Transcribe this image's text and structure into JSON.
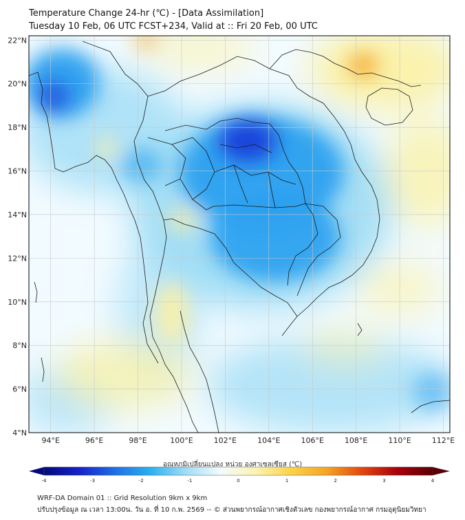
{
  "title": {
    "line1": "Temperature Change 24-hr (℃) - [Data Assimilation]",
    "line2": "Tuesday 10 Feb, 06 UTC FCST+234, Valid at :: Fri 20 Feb, 00 UTC"
  },
  "map": {
    "lon_ticks": [
      "94°E",
      "96°E",
      "98°E",
      "100°E",
      "102°E",
      "104°E",
      "106°E",
      "108°E",
      "110°E",
      "112°E"
    ],
    "lat_ticks": [
      "22°N",
      "20°N",
      "18°N",
      "16°N",
      "14°N",
      "12°N",
      "10°N",
      "8°N",
      "6°N",
      "4°N"
    ],
    "lon_range": [
      93,
      112.3
    ],
    "lat_range": [
      4,
      22.2
    ],
    "colors": {
      "cold_strong": "#1a36d8",
      "cold": "#2aa0ef",
      "cool": "#9fdcf6",
      "neutral": "#f2fbff",
      "warm": "#fbf1a6",
      "hot": "#f5a524",
      "border": "#1a1a1a",
      "grid": "#c8c8c8"
    },
    "fields": [
      {
        "name": "cold-core-northeast-thailand",
        "lon": 103.0,
        "lat": 17.3,
        "delta": -2.0
      },
      {
        "name": "cold-area-cambodia",
        "lon": 104.5,
        "lat": 13.8,
        "delta": -1.4
      },
      {
        "name": "cold-area-northwest-myanmar",
        "lon": 94.2,
        "lat": 19.8,
        "delta": -2.0
      },
      {
        "name": "warm-area-hainan-north",
        "lon": 108.4,
        "lat": 21.0,
        "delta": 1.5
      },
      {
        "name": "warm-area-south-thailand",
        "lon": 99.0,
        "lat": 8.5,
        "delta": 0.5
      }
    ]
  },
  "colorbar": {
    "label": "อุณหภูมิเปลี่ยนแปลง หน่วย องศาเซลเซียส (℃)",
    "min": -4,
    "max": 4,
    "ticks": [
      "-4",
      "-3",
      "-2",
      "-1",
      "0",
      "1",
      "2",
      "3",
      "4"
    ],
    "stops": [
      "#020a7a",
      "#1722c8",
      "#1f6ee6",
      "#2ab0f0",
      "#9fdcf6",
      "#f4fbff",
      "#fbf3b0",
      "#fbd34a",
      "#f5a524",
      "#e2470e",
      "#a8000a",
      "#5a0005"
    ]
  },
  "footer": {
    "line1": "WRF-DA Domain 01 :: Grid Resolution 9km x 9km",
    "line2": "ปรับปรุงข้อมูล ณ เวลา 13:00น. วัน อ. ที่ 10 ก.พ. 2569 -- © ส่วนพยากรณ์อากาศเชิงตัวเลข กองพยากรณ์อากาศ กรมอุตุนิยมวิทยา"
  }
}
